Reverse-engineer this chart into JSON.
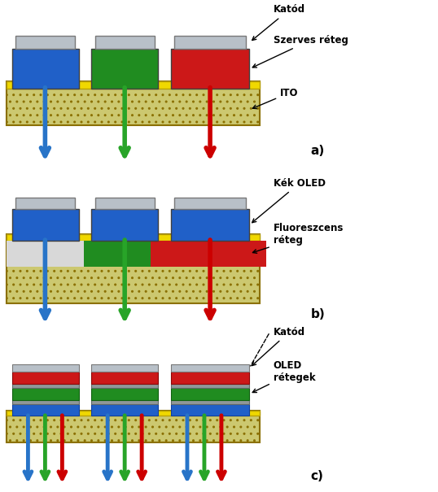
{
  "bg_color": "#ffffff",
  "ito_face": "#ccc870",
  "ito_edge": "#8b7000",
  "ito_hatch": "..",
  "yellow_top": "#f0d800",
  "yellow_edge": "#b8a000",
  "cathode_face": "#b8c0c8",
  "cathode_edge": "#787878",
  "blue_pixel": "#2060c8",
  "green_pixel": "#208c20",
  "red_pixel": "#cc1818",
  "arrow_blue": "#2874c8",
  "arrow_green": "#28a428",
  "arrow_red": "#cc0000",
  "gray_fluor": "#d8d8d8",
  "panel_a": {
    "label": "a)",
    "annots": [
      {
        "text": "Katód",
        "bold": true
      },
      {
        "text": "Szerves réteg",
        "bold": true
      },
      {
        "text": "ITO",
        "bold": true
      }
    ]
  },
  "panel_b": {
    "label": "b)",
    "annots": [
      {
        "text": "Kék OLED",
        "bold": true
      },
      {
        "text": "Fluoreszcens\nréteg",
        "bold": true
      }
    ]
  },
  "panel_c": {
    "label": "c)",
    "annots": [
      {
        "text": "Katód",
        "bold": true,
        "dashed": true
      },
      {
        "text": "OLED\nrétegek",
        "bold": true
      }
    ]
  }
}
